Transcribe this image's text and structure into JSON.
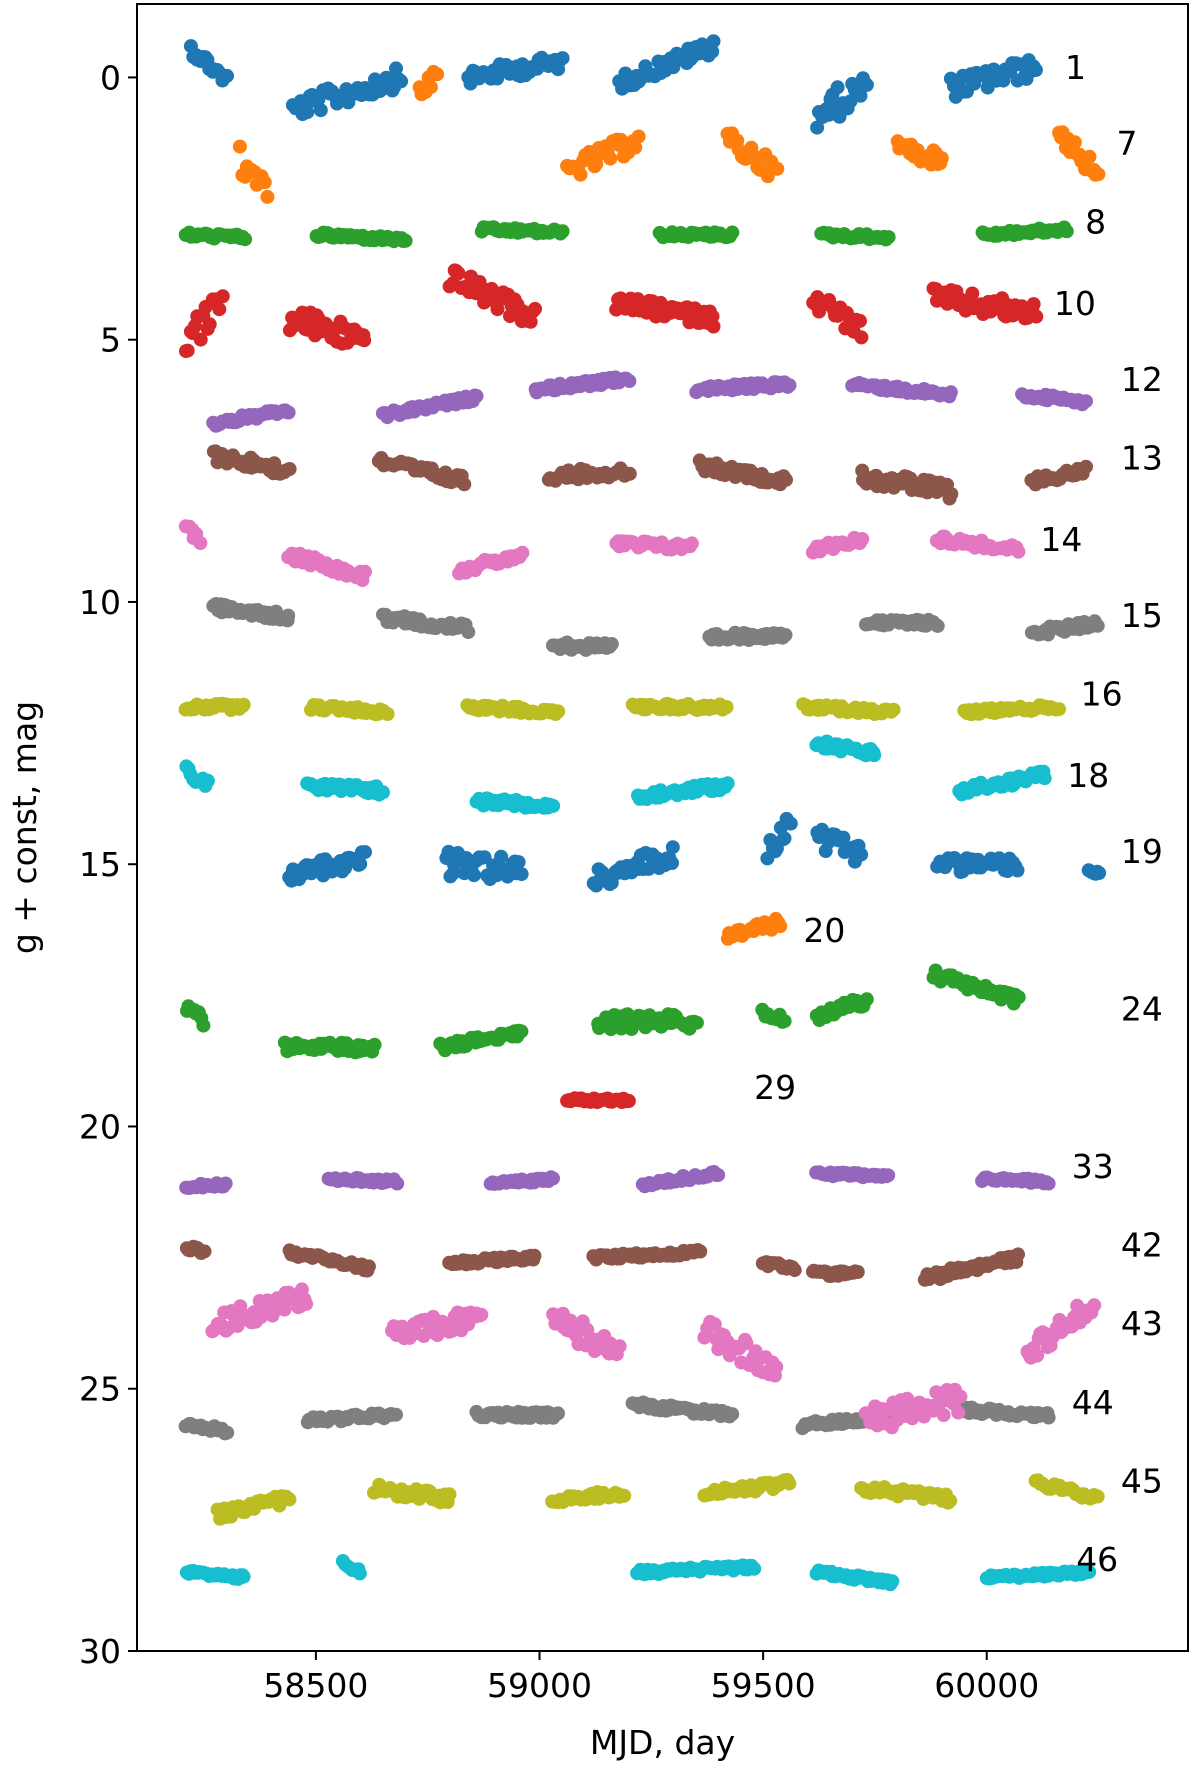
{
  "chart_data": {
    "type": "scatter",
    "title": "",
    "xlabel": "MJD, day",
    "ylabel": "g + const, mag",
    "xlim": [
      58100,
      60450
    ],
    "ylim": [
      30,
      -1.4
    ],
    "y_inverted": true,
    "grid": false,
    "xticks": [
      58500,
      59000,
      59500,
      60000
    ],
    "yticks": [
      0,
      5,
      10,
      15,
      20,
      25,
      30
    ],
    "series": [
      {
        "name": "1",
        "color": "#1f77b4",
        "label_x": 60175,
        "label_y": -0.2,
        "segments": [
          {
            "x0": 58220,
            "x1": 58300,
            "y0": -0.55,
            "y1": 0.05,
            "amp": 0.12
          },
          {
            "x0": 58450,
            "x1": 58690,
            "y0": 0.6,
            "y1": 0.0,
            "amp": 0.2
          },
          {
            "x0": 58840,
            "x1": 59050,
            "y0": 0.0,
            "y1": -0.3,
            "amp": 0.15
          },
          {
            "x0": 59180,
            "x1": 59390,
            "y0": 0.1,
            "y1": -0.6,
            "amp": 0.15
          },
          {
            "x0": 59620,
            "x1": 59730,
            "y0": 0.7,
            "y1": 0.2,
            "amp": 0.3
          },
          {
            "x0": 59920,
            "x1": 60110,
            "y0": 0.2,
            "y1": -0.2,
            "amp": 0.2
          }
        ]
      },
      {
        "name": "7",
        "color": "#ff7f0e",
        "label_x": 60290,
        "label_y": 1.25,
        "segments": [
          {
            "x0": 58330,
            "x1": 58390,
            "y0": 1.6,
            "y1": 2.0,
            "amp": 0.3
          },
          {
            "x0": 58730,
            "x1": 58770,
            "y0": 0.3,
            "y1": 0.0,
            "amp": 0.15
          },
          {
            "x0": 59060,
            "x1": 59220,
            "y0": 1.8,
            "y1": 1.2,
            "amp": 0.2
          },
          {
            "x0": 59420,
            "x1": 59530,
            "y0": 1.2,
            "y1": 1.8,
            "amp": 0.2
          },
          {
            "x0": 59800,
            "x1": 59900,
            "y0": 1.3,
            "y1": 1.6,
            "amp": 0.15
          },
          {
            "x0": 60160,
            "x1": 60250,
            "y0": 1.0,
            "y1": 1.9,
            "amp": 0.2
          }
        ]
      },
      {
        "name": "8",
        "color": "#2ca02c",
        "label_x": 60220,
        "label_y": 2.75,
        "segments": [
          {
            "x0": 58210,
            "x1": 58340,
            "y0": 3.0,
            "y1": 3.05,
            "amp": 0.05
          },
          {
            "x0": 58500,
            "x1": 58700,
            "y0": 3.0,
            "y1": 3.1,
            "amp": 0.05
          },
          {
            "x0": 58870,
            "x1": 59050,
            "y0": 2.9,
            "y1": 2.95,
            "amp": 0.05
          },
          {
            "x0": 59270,
            "x1": 59430,
            "y0": 3.0,
            "y1": 3.0,
            "amp": 0.05
          },
          {
            "x0": 59630,
            "x1": 59780,
            "y0": 3.0,
            "y1": 3.05,
            "amp": 0.05
          },
          {
            "x0": 59990,
            "x1": 60180,
            "y0": 3.0,
            "y1": 2.9,
            "amp": 0.05
          }
        ]
      },
      {
        "name": "10",
        "color": "#d62728",
        "label_x": 60150,
        "label_y": 4.3,
        "segments": [
          {
            "x0": 58210,
            "x1": 58290,
            "y0": 5.0,
            "y1": 4.3,
            "amp": 0.3
          },
          {
            "x0": 58440,
            "x1": 58610,
            "y0": 4.6,
            "y1": 5.0,
            "amp": 0.25
          },
          {
            "x0": 58800,
            "x1": 58990,
            "y0": 3.8,
            "y1": 4.6,
            "amp": 0.2
          },
          {
            "x0": 59170,
            "x1": 59390,
            "y0": 4.3,
            "y1": 4.6,
            "amp": 0.15
          },
          {
            "x0": 59610,
            "x1": 59720,
            "y0": 4.2,
            "y1": 4.8,
            "amp": 0.2
          },
          {
            "x0": 59880,
            "x1": 60110,
            "y0": 4.2,
            "y1": 4.5,
            "amp": 0.2
          }
        ]
      },
      {
        "name": "12",
        "color": "#9467bd",
        "label_x": 60300,
        "label_y": 5.75,
        "segments": [
          {
            "x0": 58270,
            "x1": 58440,
            "y0": 6.6,
            "y1": 6.35,
            "amp": 0.06
          },
          {
            "x0": 58650,
            "x1": 58860,
            "y0": 6.45,
            "y1": 6.1,
            "amp": 0.06
          },
          {
            "x0": 58990,
            "x1": 59200,
            "y0": 5.95,
            "y1": 5.75,
            "amp": 0.06
          },
          {
            "x0": 59350,
            "x1": 59560,
            "y0": 5.95,
            "y1": 5.85,
            "amp": 0.06
          },
          {
            "x0": 59700,
            "x1": 59920,
            "y0": 5.85,
            "y1": 6.05,
            "amp": 0.06
          },
          {
            "x0": 60080,
            "x1": 60220,
            "y0": 6.05,
            "y1": 6.2,
            "amp": 0.06
          }
        ]
      },
      {
        "name": "13",
        "color": "#8c564b",
        "label_x": 60300,
        "label_y": 7.25,
        "segments": [
          {
            "x0": 58270,
            "x1": 58440,
            "y0": 7.2,
            "y1": 7.5,
            "amp": 0.12
          },
          {
            "x0": 58640,
            "x1": 58830,
            "y0": 7.3,
            "y1": 7.7,
            "amp": 0.1
          },
          {
            "x0": 59020,
            "x1": 59200,
            "y0": 7.6,
            "y1": 7.5,
            "amp": 0.1
          },
          {
            "x0": 59360,
            "x1": 59550,
            "y0": 7.4,
            "y1": 7.7,
            "amp": 0.1
          },
          {
            "x0": 59720,
            "x1": 59920,
            "y0": 7.6,
            "y1": 7.9,
            "amp": 0.15
          },
          {
            "x0": 60100,
            "x1": 60220,
            "y0": 7.7,
            "y1": 7.5,
            "amp": 0.08
          }
        ]
      },
      {
        "name": "14",
        "color": "#e377c2",
        "label_x": 60120,
        "label_y": 8.8,
        "segments": [
          {
            "x0": 58210,
            "x1": 58240,
            "y0": 8.6,
            "y1": 8.8,
            "amp": 0.08
          },
          {
            "x0": 58440,
            "x1": 58610,
            "y0": 9.1,
            "y1": 9.5,
            "amp": 0.1
          },
          {
            "x0": 58820,
            "x1": 58960,
            "y0": 9.4,
            "y1": 9.1,
            "amp": 0.08
          },
          {
            "x0": 59170,
            "x1": 59340,
            "y0": 8.9,
            "y1": 8.95,
            "amp": 0.08
          },
          {
            "x0": 59610,
            "x1": 59720,
            "y0": 9.0,
            "y1": 8.8,
            "amp": 0.08
          },
          {
            "x0": 59890,
            "x1": 60070,
            "y0": 8.8,
            "y1": 9.0,
            "amp": 0.08
          }
        ]
      },
      {
        "name": "15",
        "color": "#7f7f7f",
        "label_x": 60300,
        "label_y": 10.25,
        "segments": [
          {
            "x0": 58270,
            "x1": 58440,
            "y0": 10.1,
            "y1": 10.3,
            "amp": 0.08
          },
          {
            "x0": 58650,
            "x1": 58840,
            "y0": 10.3,
            "y1": 10.5,
            "amp": 0.08
          },
          {
            "x0": 59030,
            "x1": 59160,
            "y0": 10.8,
            "y1": 10.9,
            "amp": 0.1
          },
          {
            "x0": 59380,
            "x1": 59550,
            "y0": 10.7,
            "y1": 10.6,
            "amp": 0.08
          },
          {
            "x0": 59730,
            "x1": 59890,
            "y0": 10.4,
            "y1": 10.4,
            "amp": 0.06
          },
          {
            "x0": 60100,
            "x1": 60250,
            "y0": 10.6,
            "y1": 10.4,
            "amp": 0.08
          }
        ]
      },
      {
        "name": "16",
        "color": "#bcbd22",
        "label_x": 60210,
        "label_y": 11.75,
        "segments": [
          {
            "x0": 58210,
            "x1": 58340,
            "y0": 12.0,
            "y1": 12.0,
            "amp": 0.06
          },
          {
            "x0": 58490,
            "x1": 58660,
            "y0": 12.0,
            "y1": 12.1,
            "amp": 0.06
          },
          {
            "x0": 58840,
            "x1": 59040,
            "y0": 12.0,
            "y1": 12.1,
            "amp": 0.06
          },
          {
            "x0": 59210,
            "x1": 59420,
            "y0": 12.0,
            "y1": 12.0,
            "amp": 0.06
          },
          {
            "x0": 59590,
            "x1": 59790,
            "y0": 12.0,
            "y1": 12.1,
            "amp": 0.06
          },
          {
            "x0": 59950,
            "x1": 60160,
            "y0": 12.1,
            "y1": 12.0,
            "amp": 0.05
          }
        ]
      },
      {
        "name": "18",
        "color": "#17becf",
        "label_x": 60180,
        "label_y": 13.3,
        "segments": [
          {
            "x0": 58210,
            "x1": 58260,
            "y0": 13.2,
            "y1": 13.5,
            "amp": 0.1
          },
          {
            "x0": 58480,
            "x1": 58650,
            "y0": 13.5,
            "y1": 13.6,
            "amp": 0.08
          },
          {
            "x0": 58860,
            "x1": 59030,
            "y0": 13.8,
            "y1": 13.9,
            "amp": 0.08
          },
          {
            "x0": 59220,
            "x1": 59420,
            "y0": 13.7,
            "y1": 13.5,
            "amp": 0.08
          },
          {
            "x0": 59620,
            "x1": 59750,
            "y0": 12.7,
            "y1": 12.9,
            "amp": 0.08
          },
          {
            "x0": 59940,
            "x1": 60130,
            "y0": 13.6,
            "y1": 13.3,
            "amp": 0.1
          }
        ]
      },
      {
        "name": "19",
        "color": "#1f77b4",
        "label_x": 60300,
        "label_y": 14.75,
        "segments": [
          {
            "x0": 58440,
            "x1": 58610,
            "y0": 15.2,
            "y1": 14.9,
            "amp": 0.15
          },
          {
            "x0": 58790,
            "x1": 58960,
            "y0": 15.0,
            "y1": 15.1,
            "amp": 0.25
          },
          {
            "x0": 59120,
            "x1": 59300,
            "y0": 15.3,
            "y1": 14.8,
            "amp": 0.2
          },
          {
            "x0": 59510,
            "x1": 59560,
            "y0": 14.8,
            "y1": 14.2,
            "amp": 0.2
          },
          {
            "x0": 59620,
            "x1": 59720,
            "y0": 14.5,
            "y1": 14.8,
            "amp": 0.2
          },
          {
            "x0": 59890,
            "x1": 60070,
            "y0": 15.0,
            "y1": 15.0,
            "amp": 0.15
          },
          {
            "x0": 60230,
            "x1": 60250,
            "y0": 15.1,
            "y1": 15.2,
            "amp": 0.05
          }
        ]
      },
      {
        "name": "20",
        "color": "#ff7f0e",
        "label_x": 59590,
        "label_y": 16.25,
        "segments": [
          {
            "x0": 59420,
            "x1": 59540,
            "y0": 16.4,
            "y1": 16.1,
            "amp": 0.1
          }
        ]
      },
      {
        "name": "24",
        "color": "#2ca02c",
        "label_x": 60300,
        "label_y": 17.75,
        "segments": [
          {
            "x0": 58210,
            "x1": 58250,
            "y0": 17.7,
            "y1": 18.0,
            "amp": 0.1
          },
          {
            "x0": 58430,
            "x1": 58630,
            "y0": 18.5,
            "y1": 18.5,
            "amp": 0.1
          },
          {
            "x0": 58780,
            "x1": 58960,
            "y0": 18.5,
            "y1": 18.2,
            "amp": 0.08
          },
          {
            "x0": 59130,
            "x1": 59350,
            "y0": 18.0,
            "y1": 18.0,
            "amp": 0.15
          },
          {
            "x0": 59500,
            "x1": 59550,
            "y0": 17.8,
            "y1": 18.0,
            "amp": 0.1
          },
          {
            "x0": 59620,
            "x1": 59730,
            "y0": 17.9,
            "y1": 17.6,
            "amp": 0.1
          },
          {
            "x0": 59880,
            "x1": 60070,
            "y0": 17.1,
            "y1": 17.6,
            "amp": 0.1
          }
        ]
      },
      {
        "name": "29",
        "color": "#d62728",
        "label_x": 59480,
        "label_y": 19.25,
        "segments": [
          {
            "x0": 59060,
            "x1": 59200,
            "y0": 19.5,
            "y1": 19.5,
            "amp": 0.04
          }
        ]
      },
      {
        "name": "33",
        "color": "#9467bd",
        "label_x": 60190,
        "label_y": 20.75,
        "segments": [
          {
            "x0": 58210,
            "x1": 58300,
            "y0": 21.15,
            "y1": 21.1,
            "amp": 0.04
          },
          {
            "x0": 58530,
            "x1": 58680,
            "y0": 21.0,
            "y1": 21.05,
            "amp": 0.04
          },
          {
            "x0": 58890,
            "x1": 59030,
            "y0": 21.1,
            "y1": 21.0,
            "amp": 0.04
          },
          {
            "x0": 59230,
            "x1": 59400,
            "y0": 21.1,
            "y1": 20.9,
            "amp": 0.05
          },
          {
            "x0": 59620,
            "x1": 59780,
            "y0": 20.9,
            "y1": 20.95,
            "amp": 0.04
          },
          {
            "x0": 59990,
            "x1": 60140,
            "y0": 21.0,
            "y1": 21.05,
            "amp": 0.04
          }
        ]
      },
      {
        "name": "42",
        "color": "#8c564b",
        "label_x": 60300,
        "label_y": 22.25,
        "segments": [
          {
            "x0": 58210,
            "x1": 58250,
            "y0": 22.3,
            "y1": 22.4,
            "amp": 0.05
          },
          {
            "x0": 58440,
            "x1": 58620,
            "y0": 22.4,
            "y1": 22.7,
            "amp": 0.06
          },
          {
            "x0": 58800,
            "x1": 58990,
            "y0": 22.6,
            "y1": 22.5,
            "amp": 0.05
          },
          {
            "x0": 59120,
            "x1": 59360,
            "y0": 22.5,
            "y1": 22.4,
            "amp": 0.05
          },
          {
            "x0": 59500,
            "x1": 59570,
            "y0": 22.6,
            "y1": 22.7,
            "amp": 0.05
          },
          {
            "x0": 59610,
            "x1": 59710,
            "y0": 22.8,
            "y1": 22.8,
            "amp": 0.05
          },
          {
            "x0": 59860,
            "x1": 60070,
            "y0": 22.9,
            "y1": 22.5,
            "amp": 0.08
          }
        ]
      },
      {
        "name": "43",
        "color": "#e377c2",
        "label_x": 60300,
        "label_y": 23.75,
        "segments": [
          {
            "x0": 58270,
            "x1": 58480,
            "y0": 23.8,
            "y1": 23.2,
            "amp": 0.2
          },
          {
            "x0": 58670,
            "x1": 58870,
            "y0": 24.0,
            "y1": 23.6,
            "amp": 0.2
          },
          {
            "x0": 59030,
            "x1": 59180,
            "y0": 23.6,
            "y1": 24.4,
            "amp": 0.25
          },
          {
            "x0": 59370,
            "x1": 59530,
            "y0": 23.9,
            "y1": 24.6,
            "amp": 0.25
          },
          {
            "x0": 60090,
            "x1": 60240,
            "y0": 24.3,
            "y1": 23.4,
            "amp": 0.2
          }
        ]
      },
      {
        "name": "44",
        "color": "#7f7f7f",
        "label_x": 60190,
        "label_y": 25.25,
        "segments": [
          {
            "x0": 58210,
            "x1": 58300,
            "y0": 25.7,
            "y1": 25.8,
            "amp": 0.06
          },
          {
            "x0": 58480,
            "x1": 58680,
            "y0": 25.6,
            "y1": 25.5,
            "amp": 0.06
          },
          {
            "x0": 58860,
            "x1": 59040,
            "y0": 25.5,
            "y1": 25.5,
            "amp": 0.06
          },
          {
            "x0": 59210,
            "x1": 59430,
            "y0": 25.3,
            "y1": 25.5,
            "amp": 0.06
          },
          {
            "x0": 59590,
            "x1": 59800,
            "y0": 25.7,
            "y1": 25.5,
            "amp": 0.06
          },
          {
            "x0": 59940,
            "x1": 60140,
            "y0": 25.4,
            "y1": 25.5,
            "amp": 0.06
          }
        ]
      },
      {
        "name": "45",
        "color": "#bcbd22",
        "label_x": 60300,
        "label_y": 26.75,
        "segments": [
          {
            "x0": 58280,
            "x1": 58440,
            "y0": 27.4,
            "y1": 27.1,
            "amp": 0.1
          },
          {
            "x0": 58630,
            "x1": 58800,
            "y0": 26.9,
            "y1": 27.1,
            "amp": 0.1
          },
          {
            "x0": 59030,
            "x1": 59190,
            "y0": 27.1,
            "y1": 27.0,
            "amp": 0.08
          },
          {
            "x0": 59370,
            "x1": 59560,
            "y0": 27.0,
            "y1": 26.8,
            "amp": 0.08
          },
          {
            "x0": 59720,
            "x1": 59920,
            "y0": 26.9,
            "y1": 27.1,
            "amp": 0.08
          },
          {
            "x0": 60110,
            "x1": 60250,
            "y0": 26.8,
            "y1": 27.1,
            "amp": 0.08
          }
        ]
      },
      {
        "name": "46",
        "color": "#17becf",
        "label_x": 60200,
        "label_y": 28.25,
        "segments": [
          {
            "x0": 58210,
            "x1": 58340,
            "y0": 28.5,
            "y1": 28.6,
            "amp": 0.04
          },
          {
            "x0": 58560,
            "x1": 58600,
            "y0": 28.3,
            "y1": 28.5,
            "amp": 0.05
          },
          {
            "x0": 59220,
            "x1": 59480,
            "y0": 28.5,
            "y1": 28.4,
            "amp": 0.05
          },
          {
            "x0": 59620,
            "x1": 59790,
            "y0": 28.5,
            "y1": 28.7,
            "amp": 0.05
          },
          {
            "x0": 60000,
            "x1": 60230,
            "y0": 28.6,
            "y1": 28.5,
            "amp": 0.04
          }
        ]
      },
      {
        "name": "",
        "color": "#e377c2",
        "segments": [
          {
            "x0": 59730,
            "x1": 59940,
            "y0": 25.6,
            "y1": 25.2,
            "amp": 0.25
          }
        ]
      }
    ]
  }
}
